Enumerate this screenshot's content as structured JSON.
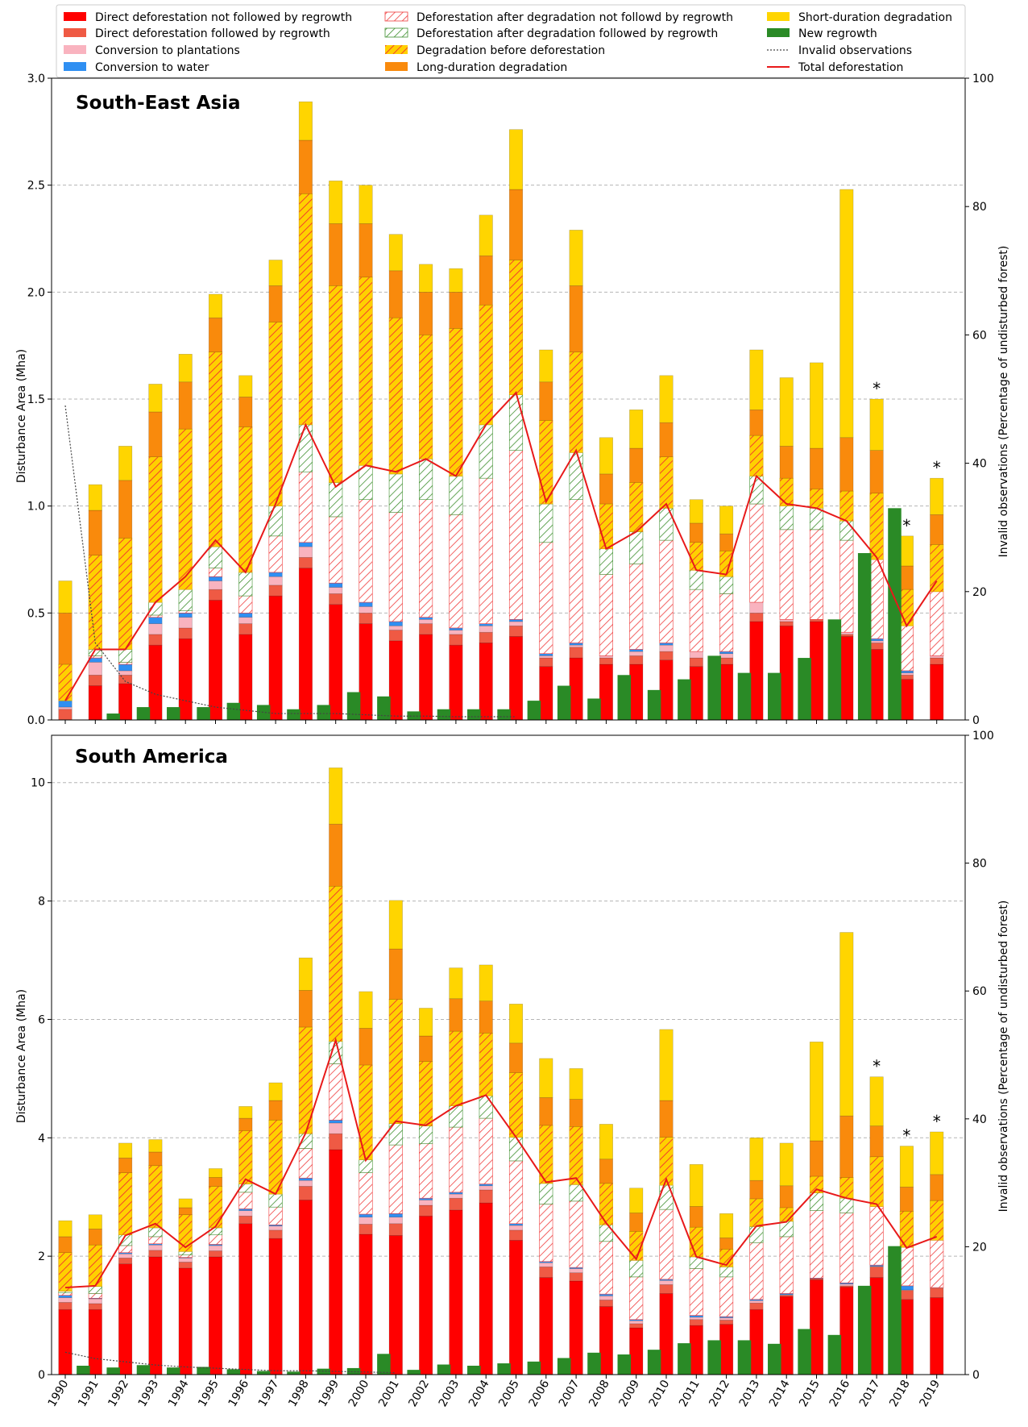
{
  "colors": {
    "direct_no_regrowth": "#ff0000",
    "direct_regrowth": "#ef5a44",
    "plantations": "#f9b3bf",
    "water": "#2f8ff2",
    "after_deg_no_regrowth_hatch": "#ef3c3c",
    "after_deg_regrowth_hatch": "#3f8f2f",
    "deg_before_def_fill": "#ffd000",
    "deg_before_def_hatch": "#f23030",
    "long_deg": "#f98a0c",
    "short_deg": "#ffd500",
    "new_regrowth": "#2a8a26",
    "total_def": "#e8191a",
    "invalid": "#444444"
  },
  "legend": {
    "items": [
      "Direct deforestation not followed by regrowth",
      "Direct deforestation followed by regrowth",
      "Conversion to plantations",
      "Conversion to water",
      "Deforestation after degradation not followd by regrowth",
      "Deforestation after degradation followed by regrowth",
      "Degradation before deforestation",
      "Long-duration degradation",
      "Short-duration degradation",
      "New regrowth",
      "Invalid observations",
      "Total deforestation"
    ]
  },
  "chart_data": [
    {
      "type": "bar",
      "title": "South-East Asia",
      "xlabel": "",
      "ylabel": "Disturbance Area (Mha)",
      "y2label": "Invalid observations (Percentage of undisturbed forest)",
      "ylim": [
        0,
        3.0
      ],
      "y2lim": [
        0,
        100
      ],
      "yticks": [
        "0.0",
        "0.5",
        "1.0",
        "1.5",
        "2.0",
        "2.5",
        "3.0"
      ],
      "y2ticks": [
        "0",
        "20",
        "40",
        "60",
        "80",
        "100"
      ],
      "categories": [
        "1990",
        "1991",
        "1992",
        "1993",
        "1994",
        "1995",
        "1996",
        "1997",
        "1998",
        "1999",
        "2000",
        "2001",
        "2002",
        "2003",
        "2004",
        "2005",
        "2006",
        "2007",
        "2008",
        "2009",
        "2010",
        "2011",
        "2012",
        "2013",
        "2014",
        "2015",
        "2016",
        "2017",
        "2018",
        "2019"
      ],
      "stack_series": [
        {
          "name": "Direct deforestation not followed by regrowth",
          "values": [
            0.0,
            0.16,
            0.17,
            0.35,
            0.38,
            0.56,
            0.4,
            0.58,
            0.71,
            0.54,
            0.45,
            0.37,
            0.4,
            0.35,
            0.36,
            0.39,
            0.25,
            0.29,
            0.26,
            0.26,
            0.28,
            0.25,
            0.26,
            0.46,
            0.44,
            0.46,
            0.39,
            0.33,
            0.19,
            0.26
          ]
        },
        {
          "name": "Direct deforestation followed by regrowth",
          "values": [
            0.05,
            0.05,
            0.04,
            0.05,
            0.05,
            0.05,
            0.05,
            0.05,
            0.05,
            0.05,
            0.05,
            0.05,
            0.05,
            0.05,
            0.05,
            0.05,
            0.04,
            0.05,
            0.03,
            0.04,
            0.04,
            0.04,
            0.03,
            0.04,
            0.02,
            0.01,
            0.01,
            0.03,
            0.02,
            0.03
          ]
        },
        {
          "name": "Conversion to plantations",
          "values": [
            0.01,
            0.06,
            0.02,
            0.05,
            0.05,
            0.04,
            0.03,
            0.04,
            0.05,
            0.03,
            0.03,
            0.02,
            0.02,
            0.02,
            0.03,
            0.02,
            0.01,
            0.01,
            0.01,
            0.02,
            0.03,
            0.03,
            0.02,
            0.05,
            0.01,
            0.0,
            0.01,
            0.01,
            0.01,
            0.01
          ]
        },
        {
          "name": "Conversion to water",
          "values": [
            0.03,
            0.02,
            0.03,
            0.03,
            0.02,
            0.02,
            0.02,
            0.02,
            0.02,
            0.02,
            0.02,
            0.02,
            0.01,
            0.01,
            0.01,
            0.01,
            0.01,
            0.01,
            0.0,
            0.01,
            0.01,
            0.0,
            0.01,
            0.0,
            0.0,
            0.0,
            0.0,
            0.01,
            0.01,
            0.0
          ]
        },
        {
          "name": "Deforestation after degradation not followd by regrowth",
          "values": [
            0.0,
            0.01,
            0.01,
            0.01,
            0.01,
            0.04,
            0.08,
            0.17,
            0.33,
            0.31,
            0.48,
            0.51,
            0.55,
            0.53,
            0.68,
            0.79,
            0.52,
            0.67,
            0.38,
            0.4,
            0.48,
            0.29,
            0.27,
            0.46,
            0.42,
            0.42,
            0.43,
            0.37,
            0.21,
            0.3
          ]
        },
        {
          "name": "Deforestation after degradation followed by regrowth",
          "values": [
            0.0,
            0.03,
            0.06,
            0.06,
            0.1,
            0.1,
            0.11,
            0.14,
            0.22,
            0.16,
            0.16,
            0.18,
            0.19,
            0.18,
            0.25,
            0.26,
            0.18,
            0.22,
            0.12,
            0.15,
            0.15,
            0.09,
            0.08,
            0.13,
            0.11,
            0.1,
            0.09,
            0.0,
            0.0,
            0.0
          ]
        },
        {
          "name": "Degradation before deforestation",
          "values": [
            0.17,
            0.44,
            0.52,
            0.68,
            0.75,
            0.91,
            0.68,
            0.86,
            1.08,
            0.92,
            0.88,
            0.73,
            0.58,
            0.69,
            0.56,
            0.63,
            0.39,
            0.47,
            0.21,
            0.23,
            0.24,
            0.13,
            0.12,
            0.19,
            0.13,
            0.09,
            0.14,
            0.31,
            0.17,
            0.22
          ]
        },
        {
          "name": "Long-duration degradation",
          "values": [
            0.24,
            0.21,
            0.27,
            0.21,
            0.22,
            0.16,
            0.14,
            0.17,
            0.25,
            0.29,
            0.25,
            0.22,
            0.2,
            0.17,
            0.23,
            0.33,
            0.18,
            0.31,
            0.14,
            0.16,
            0.16,
            0.09,
            0.08,
            0.12,
            0.15,
            0.19,
            0.25,
            0.2,
            0.11,
            0.14
          ]
        },
        {
          "name": "Short-duration degradation",
          "values": [
            0.15,
            0.12,
            0.16,
            0.13,
            0.13,
            0.11,
            0.1,
            0.12,
            0.18,
            0.2,
            0.18,
            0.17,
            0.13,
            0.11,
            0.19,
            0.28,
            0.15,
            0.26,
            0.17,
            0.18,
            0.22,
            0.11,
            0.13,
            0.28,
            0.32,
            0.4,
            1.16,
            0.24,
            0.14,
            0.17
          ]
        }
      ],
      "new_regrowth": [
        0.0,
        0.0,
        0.03,
        0.06,
        0.06,
        0.06,
        0.08,
        0.07,
        0.05,
        0.07,
        0.13,
        0.11,
        0.04,
        0.05,
        0.05,
        0.05,
        0.09,
        0.16,
        0.1,
        0.21,
        0.14,
        0.19,
        0.3,
        0.22,
        0.22,
        0.29,
        0.47,
        0.78,
        0.99,
        0.0
      ],
      "new_regrowth_x": [
        0.0,
        1.0,
        1.6,
        2.6,
        3.6,
        4.6,
        5.6,
        6.6,
        7.6,
        8.6,
        9.6,
        10.6,
        11.6,
        12.6,
        13.6,
        14.6,
        15.6,
        16.6,
        17.6,
        18.6,
        19.6,
        20.6,
        21.6,
        22.6,
        23.6,
        24.6,
        25.6,
        26.6,
        27.6,
        29.0
      ],
      "total_deforestation": [
        0.09,
        0.33,
        0.33,
        0.55,
        0.67,
        0.84,
        0.69,
        1.01,
        1.38,
        1.09,
        1.19,
        1.16,
        1.22,
        1.14,
        1.38,
        1.53,
        1.02,
        1.26,
        0.8,
        0.88,
        1.01,
        0.7,
        0.68,
        1.14,
        1.01,
        0.99,
        0.93,
        0.76,
        0.44,
        0.65
      ],
      "invalid_observations": [
        49,
        12,
        6,
        4,
        3,
        2,
        1.5,
        1,
        1,
        1,
        0.8,
        0.6,
        0.6,
        0.5,
        0.5,
        0.5,
        null,
        null,
        null,
        null,
        null,
        null,
        null,
        null,
        null,
        null,
        null,
        null,
        null,
        null
      ],
      "asterisks": [
        "2017",
        "2018",
        "2019"
      ]
    },
    {
      "type": "bar",
      "title": "South America",
      "xlabel": "",
      "ylabel": "Disturbance Area (Mha)",
      "y2label": "Invalid observations (Percentage of undisturbed forest)",
      "ylim": [
        0,
        10.8
      ],
      "y2lim": [
        0,
        100
      ],
      "yticks": [
        "0",
        "2",
        "4",
        "6",
        "8",
        "10"
      ],
      "y2ticks": [
        "0",
        "20",
        "40",
        "60",
        "80",
        "100"
      ],
      "categories": [
        "1990",
        "1991",
        "1992",
        "1993",
        "1994",
        "1995",
        "1996",
        "1997",
        "1998",
        "1999",
        "2000",
        "2001",
        "2002",
        "2003",
        "2004",
        "2005",
        "2006",
        "2007",
        "2008",
        "2009",
        "2010",
        "2011",
        "2012",
        "2013",
        "2014",
        "2015",
        "2016",
        "2017",
        "2018",
        "2019"
      ],
      "stack_series": [
        {
          "name": "Direct deforestation not followed by regrowth",
          "values": [
            1.1,
            1.1,
            1.87,
            1.99,
            1.8,
            1.99,
            2.55,
            2.3,
            2.95,
            3.8,
            2.37,
            2.35,
            2.68,
            2.78,
            2.9,
            2.27,
            1.64,
            1.58,
            1.15,
            0.79,
            1.37,
            0.83,
            0.85,
            1.1,
            1.32,
            1.6,
            1.48,
            1.64,
            1.27,
            1.3
          ]
        },
        {
          "name": "Direct deforestation followed by regrowth",
          "values": [
            0.12,
            0.1,
            0.1,
            0.11,
            0.1,
            0.1,
            0.13,
            0.14,
            0.23,
            0.27,
            0.17,
            0.2,
            0.18,
            0.2,
            0.22,
            0.17,
            0.18,
            0.14,
            0.11,
            0.07,
            0.15,
            0.1,
            0.07,
            0.11,
            0.02,
            0.02,
            0.02,
            0.18,
            0.15,
            0.16
          ]
        },
        {
          "name": "Conversion to plantations",
          "values": [
            0.08,
            0.08,
            0.07,
            0.09,
            0.07,
            0.09,
            0.09,
            0.07,
            0.1,
            0.18,
            0.12,
            0.11,
            0.09,
            0.07,
            0.07,
            0.08,
            0.07,
            0.07,
            0.07,
            0.05,
            0.07,
            0.04,
            0.04,
            0.04,
            0.01,
            0.0,
            0.03,
            0.01,
            0.01,
            0.01
          ]
        },
        {
          "name": "Conversion to water",
          "values": [
            0.04,
            0.01,
            0.02,
            0.02,
            0.01,
            0.02,
            0.03,
            0.02,
            0.04,
            0.05,
            0.05,
            0.06,
            0.03,
            0.03,
            0.03,
            0.03,
            0.02,
            0.02,
            0.03,
            0.02,
            0.02,
            0.03,
            0.02,
            0.02,
            0.02,
            0.01,
            0.02,
            0.02,
            0.07,
            0.0
          ]
        },
        {
          "name": "Deforestation after degradation not followd by regrowth",
          "values": [
            0.04,
            0.08,
            0.12,
            0.12,
            0.04,
            0.16,
            0.28,
            0.3,
            0.5,
            0.95,
            0.7,
            1.16,
            0.92,
            1.1,
            1.11,
            1.06,
            0.97,
            1.12,
            0.89,
            0.72,
            1.18,
            0.79,
            0.67,
            0.96,
            0.96,
            1.14,
            1.18,
            0.99,
            0.65,
            0.8
          ]
        },
        {
          "name": "Deforestation after degradation followed by regrowth",
          "values": [
            0.03,
            0.12,
            0.18,
            0.15,
            0.06,
            0.12,
            0.14,
            0.22,
            0.25,
            0.38,
            0.22,
            0.36,
            0.3,
            0.36,
            0.38,
            0.4,
            0.35,
            0.28,
            0.28,
            0.28,
            0.41,
            0.2,
            0.17,
            0.27,
            0.26,
            0.3,
            0.25,
            0.0,
            0.0,
            0.0
          ]
        },
        {
          "name": "Degradation before deforestation",
          "values": [
            0.65,
            0.7,
            1.05,
            1.05,
            0.62,
            0.7,
            0.9,
            1.25,
            1.8,
            2.62,
            1.6,
            2.1,
            1.09,
            1.26,
            1.06,
            1.09,
            0.98,
            0.98,
            0.7,
            0.49,
            0.81,
            0.5,
            0.3,
            0.47,
            0.23,
            0.28,
            0.35,
            0.84,
            0.61,
            0.67
          ]
        },
        {
          "name": "Long-duration degradation",
          "values": [
            0.27,
            0.27,
            0.25,
            0.23,
            0.12,
            0.15,
            0.21,
            0.33,
            0.62,
            1.05,
            0.62,
            0.85,
            0.43,
            0.55,
            0.54,
            0.5,
            0.47,
            0.46,
            0.41,
            0.31,
            0.62,
            0.35,
            0.19,
            0.31,
            0.37,
            0.6,
            1.04,
            0.52,
            0.41,
            0.44
          ]
        },
        {
          "name": "Short-duration degradation",
          "values": [
            0.27,
            0.24,
            0.25,
            0.21,
            0.15,
            0.15,
            0.2,
            0.3,
            0.55,
            0.95,
            0.62,
            0.82,
            0.47,
            0.52,
            0.61,
            0.66,
            0.66,
            0.52,
            0.59,
            0.42,
            1.2,
            0.71,
            0.41,
            0.72,
            0.72,
            1.67,
            3.1,
            0.83,
            0.69,
            0.72
          ]
        }
      ],
      "new_regrowth": [
        0.0,
        0.15,
        0.12,
        0.16,
        0.12,
        0.13,
        0.09,
        0.06,
        0.05,
        0.1,
        0.11,
        0.35,
        0.08,
        0.17,
        0.15,
        0.19,
        0.22,
        0.28,
        0.37,
        0.34,
        0.42,
        0.53,
        0.58,
        0.58,
        0.52,
        0.77,
        0.67,
        1.5,
        2.17,
        0.0
      ],
      "new_regrowth_x": [
        0.0,
        0.6,
        1.6,
        2.6,
        3.6,
        4.6,
        5.6,
        6.6,
        7.6,
        8.6,
        9.6,
        10.6,
        11.6,
        12.6,
        13.6,
        14.6,
        15.6,
        16.6,
        17.6,
        18.6,
        19.6,
        20.6,
        21.6,
        22.6,
        23.6,
        24.6,
        25.6,
        26.6,
        27.6,
        29.0
      ],
      "total_deforestation": [
        1.47,
        1.5,
        2.35,
        2.55,
        2.15,
        2.5,
        3.3,
        3.05,
        4.08,
        5.65,
        3.62,
        4.28,
        4.21,
        4.54,
        4.72,
        4.01,
        3.25,
        3.32,
        2.56,
        1.95,
        3.3,
        1.99,
        1.85,
        2.51,
        2.58,
        3.13,
        2.98,
        2.88,
        2.14,
        2.33
      ],
      "invalid_observations": [
        3.5,
        2.5,
        2,
        1.5,
        1.2,
        1,
        0.8,
        0.6,
        0.6,
        0.5,
        0.4,
        0.3,
        null,
        null,
        null,
        null,
        null,
        null,
        null,
        null,
        null,
        null,
        null,
        null,
        null,
        null,
        null,
        null,
        null,
        null
      ],
      "asterisks": [
        "2017",
        "2018",
        "2019"
      ]
    }
  ]
}
